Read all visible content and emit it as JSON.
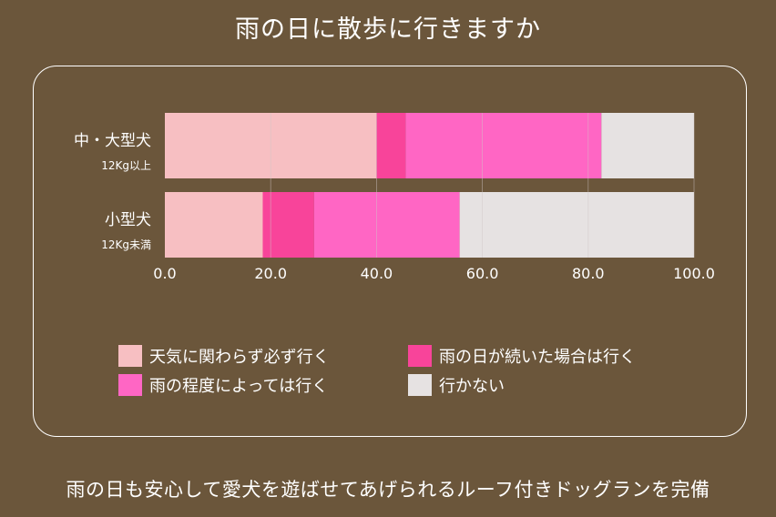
{
  "title": "雨の日に散歩に行きますか",
  "footer": "雨の日も安心して愛犬を遊ばせてあげられるルーフ付きドッグランを完備",
  "chart_data": {
    "type": "bar",
    "orientation": "horizontal",
    "stacked": true,
    "categories": [
      {
        "label": "中・大型犬",
        "sublabel": "12Kg以上"
      },
      {
        "label": "小型犬",
        "sublabel": "12Kg未満"
      }
    ],
    "series": [
      {
        "name": "天気に関わらず必ず行く",
        "color": "#f7bfc2",
        "values": [
          40,
          18.5
        ]
      },
      {
        "name": "雨の日が続いた場合は行く",
        "color": "#f8449a",
        "values": [
          5.5,
          9.7
        ]
      },
      {
        "name": "雨の程度によっては行く",
        "color": "#ff66c4",
        "values": [
          37,
          27.5
        ]
      },
      {
        "name": "行かない",
        "color": "#e6e2e2",
        "values": [
          17.5,
          44.3
        ]
      }
    ],
    "xlim": [
      0,
      100
    ],
    "xticks": [
      "0.0",
      "20.0",
      "40.0",
      "60.0",
      "80.0",
      "100.0"
    ],
    "grid": true
  }
}
